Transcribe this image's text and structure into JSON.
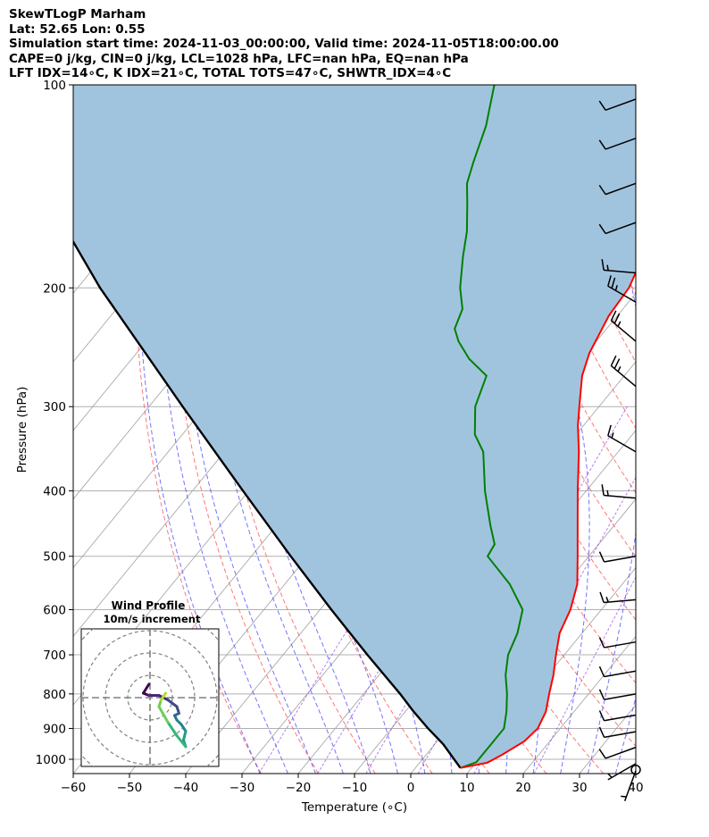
{
  "header": {
    "title": "SkewTLogP Marham",
    "location": "Lat: 52.65   Lon: 0.55",
    "times": "Simulation start time: 2024-11-03_00:00:00, Valid time: 2024-11-05T18:00:00.00",
    "indices1": "CAPE=0 j/kg, CIN=0 j/kg, LCL=1028 hPa, LFC=nan hPa, EQ=nan hPa",
    "indices2": "LFT IDX=14∘C, K IDX=21∘C, TOTAL TOTS=47∘C, SHWTR_IDX=4∘C"
  },
  "chart_data": {
    "type": "skewt",
    "xlabel": "Temperature (∘C)",
    "ylabel": "Pressure (hPa)",
    "xlim": [
      -60,
      40
    ],
    "plim": [
      1050,
      100
    ],
    "x_ticks": [
      "−60",
      "−50",
      "−40",
      "−30",
      "−20",
      "−10",
      "0",
      "10",
      "20",
      "30",
      "40"
    ],
    "x_tick_values": [
      -60,
      -50,
      -40,
      -30,
      -20,
      -10,
      0,
      10,
      20,
      30,
      40
    ],
    "p_ticks": [
      "1000",
      "900",
      "800",
      "700",
      "600",
      "500",
      "400",
      "300",
      "200",
      "100"
    ],
    "p_tick_values": [
      1000,
      900,
      800,
      700,
      600,
      500,
      400,
      300,
      200,
      100
    ],
    "grid": true,
    "colors": {
      "temperature": "#ff0000",
      "dewpoint": "#008000",
      "parcel": "#000000",
      "shade": "#a1c4de",
      "dry_adiabat": "#ff5555",
      "moist_adiabat": "#4444ff",
      "mixing_ratio": "#8a2be2",
      "isotherm": "#a0a0a0"
    },
    "temperature": [
      {
        "p": 1030,
        "t": 8
      },
      {
        "p": 1012,
        "t": 12
      },
      {
        "p": 985,
        "t": 13.5
      },
      {
        "p": 940,
        "t": 15.5
      },
      {
        "p": 900,
        "t": 16
      },
      {
        "p": 850,
        "t": 15
      },
      {
        "p": 800,
        "t": 13
      },
      {
        "p": 750,
        "t": 11
      },
      {
        "p": 700,
        "t": 8.5
      },
      {
        "p": 650,
        "t": 6
      },
      {
        "p": 600,
        "t": 4.5
      },
      {
        "p": 550,
        "t": 2
      },
      {
        "p": 500,
        "t": -2
      },
      {
        "p": 450,
        "t": -6.5
      },
      {
        "p": 400,
        "t": -11.5
      },
      {
        "p": 350,
        "t": -17
      },
      {
        "p": 320,
        "t": -21
      },
      {
        "p": 300,
        "t": -23.5
      },
      {
        "p": 270,
        "t": -27.5
      },
      {
        "p": 250,
        "t": -29.5
      },
      {
        "p": 220,
        "t": -31.5
      },
      {
        "p": 200,
        "t": -32
      },
      {
        "p": 185,
        "t": -33.5
      },
      {
        "p": 170,
        "t": -34
      },
      {
        "p": 150,
        "t": -35.5
      },
      {
        "p": 130,
        "t": -37
      },
      {
        "p": 115,
        "t": -39
      },
      {
        "p": 100,
        "t": -41
      }
    ],
    "dewpoint": [
      {
        "p": 1030,
        "t": 8
      },
      {
        "p": 1010,
        "t": 10
      },
      {
        "p": 985,
        "t": 10
      },
      {
        "p": 950,
        "t": 10
      },
      {
        "p": 900,
        "t": 10
      },
      {
        "p": 850,
        "t": 8
      },
      {
        "p": 800,
        "t": 5.5
      },
      {
        "p": 750,
        "t": 2.5
      },
      {
        "p": 700,
        "t": 0
      },
      {
        "p": 650,
        "t": -1.5
      },
      {
        "p": 600,
        "t": -4
      },
      {
        "p": 550,
        "t": -10
      },
      {
        "p": 500,
        "t": -18
      },
      {
        "p": 480,
        "t": -18.5
      },
      {
        "p": 450,
        "t": -22
      },
      {
        "p": 400,
        "t": -28
      },
      {
        "p": 350,
        "t": -34
      },
      {
        "p": 330,
        "t": -38
      },
      {
        "p": 300,
        "t": -42
      },
      {
        "p": 270,
        "t": -44.5
      },
      {
        "p": 255,
        "t": -50
      },
      {
        "p": 240,
        "t": -54.5
      },
      {
        "p": 230,
        "t": -57
      },
      {
        "p": 215,
        "t": -58.5
      },
      {
        "p": 200,
        "t": -62
      },
      {
        "p": 180,
        "t": -66
      },
      {
        "p": 165,
        "t": -69
      },
      {
        "p": 150,
        "t": -73
      },
      {
        "p": 140,
        "t": -76
      },
      {
        "p": 130,
        "t": -78
      },
      {
        "p": 115,
        "t": -81
      },
      {
        "p": 100,
        "t": -85.5
      }
    ],
    "parcel": [
      {
        "p": 1030,
        "t": 8
      },
      {
        "p": 950,
        "t": 1.5
      },
      {
        "p": 900,
        "t": -3.5
      },
      {
        "p": 850,
        "t": -8.5
      },
      {
        "p": 800,
        "t": -13.5
      },
      {
        "p": 700,
        "t": -25
      },
      {
        "p": 600,
        "t": -38
      },
      {
        "p": 500,
        "t": -53
      },
      {
        "p": 400,
        "t": -71
      },
      {
        "p": 300,
        "t": -94
      },
      {
        "p": 200,
        "t": -126
      },
      {
        "p": 150,
        "t": -147
      },
      {
        "p": 100,
        "t": -177
      }
    ],
    "wind_barbs": [
      {
        "p": 1040,
        "speed_kt": 5,
        "dir": 200
      },
      {
        "p": 1015,
        "speed_kt": 5,
        "dir": 240
      },
      {
        "p": 960,
        "speed_kt": 10,
        "dir": 250
      },
      {
        "p": 910,
        "speed_kt": 10,
        "dir": 260
      },
      {
        "p": 860,
        "speed_kt": 10,
        "dir": 260
      },
      {
        "p": 800,
        "speed_kt": 10,
        "dir": 260
      },
      {
        "p": 740,
        "speed_kt": 10,
        "dir": 260
      },
      {
        "p": 670,
        "speed_kt": 10,
        "dir": 260
      },
      {
        "p": 580,
        "speed_kt": 15,
        "dir": 265
      },
      {
        "p": 500,
        "speed_kt": 10,
        "dir": 260
      },
      {
        "p": 410,
        "speed_kt": 15,
        "dir": 275
      },
      {
        "p": 350,
        "speed_kt": 15,
        "dir": 300
      },
      {
        "p": 280,
        "speed_kt": 25,
        "dir": 310
      },
      {
        "p": 240,
        "speed_kt": 25,
        "dir": 310
      },
      {
        "p": 210,
        "speed_kt": 25,
        "dir": 300
      },
      {
        "p": 190,
        "speed_kt": 15,
        "dir": 275
      },
      {
        "p": 160,
        "speed_kt": 10,
        "dir": 250
      },
      {
        "p": 140,
        "speed_kt": 10,
        "dir": 250
      },
      {
        "p": 120,
        "speed_kt": 10,
        "dir": 250
      },
      {
        "p": 105,
        "speed_kt": 10,
        "dir": 250
      }
    ],
    "hodograph": {
      "title": "Wind Profile",
      "subtitle": "10m/s increment",
      "ring_step_ms": 10,
      "points": [
        {
          "u": -0.5,
          "v": 6
        },
        {
          "u": -3,
          "v": 2
        },
        {
          "u": -0.5,
          "v": 1
        },
        {
          "u": 4,
          "v": 1
        },
        {
          "u": 8,
          "v": -1
        },
        {
          "u": 12,
          "v": -4
        },
        {
          "u": 13,
          "v": -7
        },
        {
          "u": 11,
          "v": -8
        },
        {
          "u": 12,
          "v": -10
        },
        {
          "u": 14,
          "v": -12
        },
        {
          "u": 16,
          "v": -15
        },
        {
          "u": 15,
          "v": -19
        },
        {
          "u": 16,
          "v": -22
        },
        {
          "u": 12,
          "v": -17
        },
        {
          "u": 8,
          "v": -11
        },
        {
          "u": 4,
          "v": -4
        },
        {
          "u": 5,
          "v": -1
        },
        {
          "u": 7,
          "v": 2
        }
      ]
    }
  }
}
